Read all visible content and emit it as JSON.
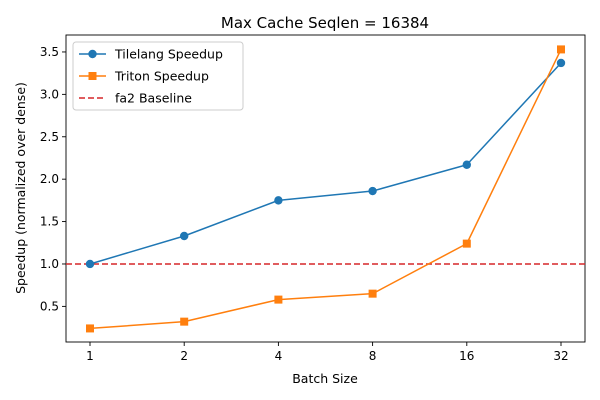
{
  "chart_data": {
    "type": "line",
    "title": "Max Cache Seqlen = 16384",
    "xlabel": "Batch Size",
    "ylabel": "Speedup (normalized over dense)",
    "categories": [
      "1",
      "2",
      "4",
      "8",
      "16",
      "32"
    ],
    "ylim": [
      0.08,
      3.7
    ],
    "yticks": [
      0.5,
      1.0,
      1.5,
      2.0,
      2.5,
      3.0,
      3.5
    ],
    "ytick_labels": [
      "0.5",
      "1.0",
      "1.5",
      "2.0",
      "2.5",
      "3.0",
      "3.5"
    ],
    "grid": false,
    "legend_position": "top-left",
    "series": [
      {
        "name": "Tilelang Speedup",
        "color": "#1f77b4",
        "marker": "circle",
        "values": [
          1.0,
          1.33,
          1.75,
          1.86,
          2.17,
          3.37
        ]
      },
      {
        "name": "Triton Speedup",
        "color": "#ff7f0e",
        "marker": "square",
        "values": [
          0.24,
          0.32,
          0.58,
          0.65,
          1.24,
          3.53
        ]
      }
    ],
    "reference_lines": [
      {
        "name": "fa2 Baseline",
        "color": "#d62728",
        "style": "dashed",
        "y": 1.0
      }
    ]
  }
}
